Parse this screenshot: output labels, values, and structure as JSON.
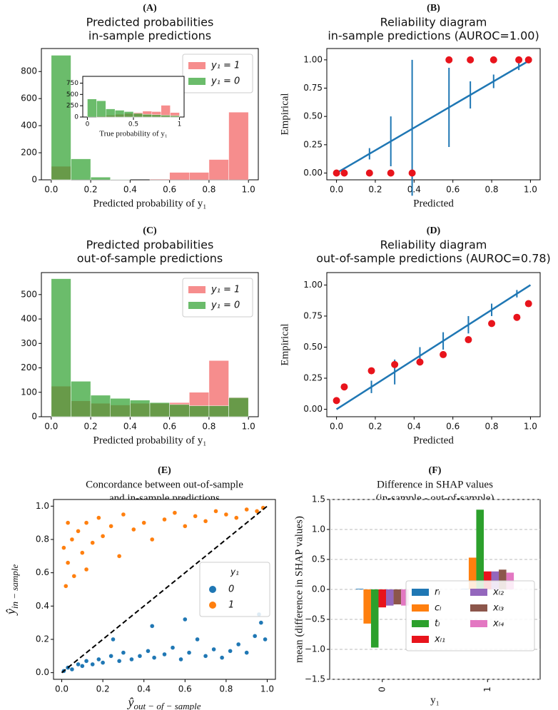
{
  "chart_data": [
    {
      "type": "histogram",
      "label": "(A)",
      "title": [
        "Predicted probabilities",
        "in-sample predictions"
      ],
      "xlabel": "Predicted probability of y₁",
      "xlim": [
        -0.05,
        1.05
      ],
      "ylim": [
        0,
        970
      ],
      "xticks": [
        {
          "value": 0,
          "label": "0.0"
        },
        {
          "value": 0.2,
          "label": "0.2"
        },
        {
          "value": 0.4,
          "label": "0.4"
        },
        {
          "value": 0.6,
          "label": "0.6"
        },
        {
          "value": 0.8,
          "label": "0.8"
        },
        {
          "value": 1,
          "label": "1.0"
        }
      ],
      "yticks": [
        0,
        200,
        400,
        600,
        800
      ],
      "alpha": 0.7,
      "legend": "upper right",
      "bins": [
        0,
        0.1,
        0.2,
        0.3,
        0.4,
        0.5,
        0.6,
        0.7,
        0.8,
        0.9,
        1.0
      ],
      "series": [
        {
          "name": "y₁ = 1",
          "color": "#f25c5c",
          "values": [
            100,
            0,
            0,
            0,
            0,
            5,
            55,
            55,
            150,
            500
          ]
        },
        {
          "name": "y₁ = 0",
          "color": "#2ca02c",
          "values": [
            920,
            155,
            20,
            3,
            0,
            0,
            0,
            0,
            0,
            0
          ]
        }
      ],
      "inset": {
        "type": "histogram",
        "xlabel": "True probability of y₁",
        "xlim": [
          -0.05,
          1.05
        ],
        "ylim": [
          0,
          900
        ],
        "xticks": [
          0,
          0.5,
          1
        ],
        "yticks": [
          0,
          250,
          500,
          750
        ],
        "alpha": 0.7,
        "bins": [
          0,
          0.1,
          0.2,
          0.3,
          0.4,
          0.5,
          0.6,
          0.7,
          0.8,
          0.9,
          1.0
        ],
        "series": [
          {
            "color": "#f25c5c",
            "values": [
              0,
              20,
              40,
              60,
              80,
              100,
              130,
              120,
              260,
              100
            ]
          },
          {
            "color": "#2ca02c",
            "values": [
              400,
              360,
              180,
              150,
              120,
              80,
              60,
              50,
              40,
              30
            ]
          }
        ]
      }
    },
    {
      "type": "reliability",
      "label": "(B)",
      "title": [
        "Reliability diagram",
        "in-sample predictions (AUROC=1.00)"
      ],
      "xlabel": "Predicted",
      "ylabel": "Empirical",
      "xlim": [
        -0.05,
        1.05
      ],
      "ylim": [
        -0.06,
        1.1
      ],
      "xticks": [
        {
          "value": 0,
          "label": "0.0"
        },
        {
          "value": 0.2,
          "label": "0.2"
        },
        {
          "value": 0.4,
          "label": "0.4"
        },
        {
          "value": 0.6,
          "label": "0.6"
        },
        {
          "value": 0.8,
          "label": "0.8"
        },
        {
          "value": 1,
          "label": "1.0"
        }
      ],
      "yticks": [
        {
          "value": 0,
          "label": "0.00"
        },
        {
          "value": 0.25,
          "label": "0.25"
        },
        {
          "value": 0.5,
          "label": "0.50"
        },
        {
          "value": 0.75,
          "label": "0.75"
        },
        {
          "value": 1,
          "label": "1.00"
        }
      ],
      "line": {
        "color": "#1f77b4",
        "x": [
          0,
          1
        ],
        "values": [
          0,
          1
        ]
      },
      "errorbars": {
        "color": "#1f77b4",
        "x": [
          0.17,
          0.28,
          0.39,
          0.58,
          0.69,
          0.81,
          0.94
        ],
        "values": [
          0.17,
          0.28,
          0.4,
          0.58,
          0.69,
          0.81,
          0.94
        ],
        "errors": [
          0.05,
          0.22,
          0.6,
          0.35,
          0.12,
          0.06,
          0.03
        ]
      },
      "points": {
        "color": "#e8141c",
        "x": [
          0,
          0.04,
          0.17,
          0.28,
          0.39,
          0.58,
          0.69,
          0.81,
          0.94,
          0.99
        ],
        "values": [
          0,
          0,
          0,
          0,
          0,
          1,
          1,
          1,
          1,
          1
        ]
      }
    },
    {
      "type": "histogram",
      "label": "(C)",
      "title": [
        "Predicted probabilities",
        "out-of-sample predictions"
      ],
      "xlabel": "Predicted probability of y₁",
      "xlim": [
        -0.05,
        1.05
      ],
      "ylim": [
        0,
        590
      ],
      "xticks": [
        {
          "value": 0,
          "label": "0.0"
        },
        {
          "value": 0.2,
          "label": "0.2"
        },
        {
          "value": 0.4,
          "label": "0.4"
        },
        {
          "value": 0.6,
          "label": "0.6"
        },
        {
          "value": 0.8,
          "label": "0.8"
        },
        {
          "value": 1,
          "label": "1.0"
        }
      ],
      "yticks": [
        0,
        100,
        200,
        300,
        400,
        500
      ],
      "alpha": 0.7,
      "legend": "upper right",
      "bins": [
        0,
        0.1,
        0.2,
        0.3,
        0.4,
        0.5,
        0.6,
        0.7,
        0.8,
        0.9,
        1.0
      ],
      "series": [
        {
          "name": "y₁ = 1",
          "color": "#f25c5c",
          "values": [
            125,
            65,
            55,
            48,
            55,
            55,
            58,
            100,
            230,
            80
          ]
        },
        {
          "name": "y₁ = 0",
          "color": "#2ca02c",
          "values": [
            565,
            145,
            88,
            75,
            68,
            58,
            50,
            45,
            45,
            78
          ]
        }
      ]
    },
    {
      "type": "reliability",
      "label": "(D)",
      "title": [
        "Reliability diagram",
        "out-of-sample predictions (AUROC=0.78)"
      ],
      "xlabel": "Predicted",
      "ylabel": "Empirical",
      "xlim": [
        -0.05,
        1.05
      ],
      "ylim": [
        -0.06,
        1.1
      ],
      "xticks": [
        {
          "value": 0,
          "label": "0.0"
        },
        {
          "value": 0.2,
          "label": "0.2"
        },
        {
          "value": 0.4,
          "label": "0.4"
        },
        {
          "value": 0.6,
          "label": "0.6"
        },
        {
          "value": 0.8,
          "label": "0.8"
        },
        {
          "value": 1,
          "label": "1.0"
        }
      ],
      "yticks": [
        {
          "value": 0,
          "label": "0.00"
        },
        {
          "value": 0.25,
          "label": "0.25"
        },
        {
          "value": 0.5,
          "label": "0.50"
        },
        {
          "value": 0.75,
          "label": "0.75"
        },
        {
          "value": 1,
          "label": "1.00"
        }
      ],
      "line": {
        "color": "#1f77b4",
        "x": [
          0,
          1
        ],
        "values": [
          0,
          1
        ]
      },
      "errorbars": {
        "color": "#1f77b4",
        "x": [
          0.18,
          0.3,
          0.43,
          0.55,
          0.68,
          0.8,
          0.93
        ],
        "values": [
          0.18,
          0.3,
          0.43,
          0.55,
          0.68,
          0.8,
          0.93
        ],
        "errors": [
          0.05,
          0.1,
          0.07,
          0.07,
          0.07,
          0.05,
          0.03
        ]
      },
      "points": {
        "color": "#e8141c",
        "x": [
          0,
          0.04,
          0.18,
          0.3,
          0.43,
          0.55,
          0.68,
          0.8,
          0.93,
          0.99
        ],
        "values": [
          0.07,
          0.18,
          0.31,
          0.36,
          0.38,
          0.44,
          0.56,
          0.69,
          0.74,
          0.85
        ]
      }
    },
    {
      "type": "scatter",
      "label": "(E)",
      "title": [
        "Concordance between out-of-sample",
        "and in-sample predictions"
      ],
      "xlabel": "ŷ",
      "xlabel_subscript": "out − of − sample",
      "ylabel": "ŷ",
      "ylabel_subscript": "in − sample",
      "xlim": [
        -0.04,
        1.04
      ],
      "ylim": [
        -0.04,
        1.04
      ],
      "xticks": [
        {
          "value": 0,
          "label": "0.0"
        },
        {
          "value": 0.2,
          "label": "0.2"
        },
        {
          "value": 0.4,
          "label": "0.4"
        },
        {
          "value": 0.6,
          "label": "0.6"
        },
        {
          "value": 0.8,
          "label": "0.8"
        },
        {
          "value": 1,
          "label": "1.0"
        }
      ],
      "yticks": [
        {
          "value": 0,
          "label": "0.0"
        },
        {
          "value": 0.2,
          "label": "0.2"
        },
        {
          "value": 0.4,
          "label": "0.4"
        },
        {
          "value": 0.6,
          "label": "0.6"
        },
        {
          "value": 0.8,
          "label": "0.8"
        },
        {
          "value": 1,
          "label": "1.0"
        }
      ],
      "legend": "center right",
      "legend_title": "y₁",
      "reference_line": {
        "color": "#000000",
        "x": [
          0,
          1
        ],
        "values": [
          0,
          1
        ]
      },
      "series": [
        {
          "name": "0",
          "color": "#1f77b4",
          "x": [
            0.01,
            0.03,
            0.05,
            0.08,
            0.1,
            0.12,
            0.15,
            0.18,
            0.2,
            0.24,
            0.28,
            0.3,
            0.34,
            0.38,
            0.42,
            0.45,
            0.5,
            0.54,
            0.58,
            0.62,
            0.66,
            0.7,
            0.74,
            0.78,
            0.82,
            0.86,
            0.9,
            0.94,
            0.97,
            0.99,
            0.25,
            0.6,
            0.96,
            0.44
          ],
          "values": [
            0.01,
            0.03,
            0.02,
            0.05,
            0.04,
            0.07,
            0.05,
            0.08,
            0.06,
            0.1,
            0.07,
            0.12,
            0.08,
            0.1,
            0.13,
            0.09,
            0.11,
            0.15,
            0.08,
            0.12,
            0.2,
            0.1,
            0.14,
            0.09,
            0.13,
            0.17,
            0.12,
            0.22,
            0.3,
            0.2,
            0.2,
            0.32,
            0.35,
            0.28
          ]
        },
        {
          "name": "1",
          "color": "#ff7f0e",
          "x": [
            0.01,
            0.02,
            0.03,
            0.05,
            0.06,
            0.08,
            0.1,
            0.12,
            0.15,
            0.18,
            0.2,
            0.24,
            0.28,
            0.3,
            0.35,
            0.4,
            0.44,
            0.5,
            0.55,
            0.6,
            0.65,
            0.7,
            0.75,
            0.8,
            0.85,
            0.9,
            0.95,
            0.98,
            0.03,
            0.12
          ],
          "values": [
            0.75,
            0.52,
            0.66,
            0.8,
            0.58,
            0.85,
            0.72,
            0.9,
            0.78,
            0.93,
            0.82,
            0.88,
            0.7,
            0.95,
            0.86,
            0.9,
            0.8,
            0.92,
            0.96,
            0.88,
            0.94,
            0.91,
            0.97,
            0.95,
            0.93,
            0.98,
            0.97,
            0.99,
            0.9,
            0.62
          ]
        }
      ]
    },
    {
      "type": "bar",
      "label": "(F)",
      "title": [
        "Difference in SHAP values",
        "(in-sample - out-of-sample)"
      ],
      "xlabel": "y₁",
      "ylabel": "mean (difference in SHAP values)",
      "categories": [
        "0",
        "1"
      ],
      "ylim": [
        -1.5,
        1.5
      ],
      "yticks": [
        {
          "value": -1.5,
          "label": "−1.5"
        },
        {
          "value": -1,
          "label": "−1.0"
        },
        {
          "value": -0.5,
          "label": "−0.5"
        },
        {
          "value": 0,
          "label": "0.0"
        },
        {
          "value": 0.5,
          "label": "0.5"
        },
        {
          "value": 1,
          "label": "1.0"
        },
        {
          "value": 1.5,
          "label": "1.5"
        }
      ],
      "grid": true,
      "legend": "lower right",
      "legend_columns": 2,
      "series": [
        {
          "name": "rₗ",
          "color": "#1f77b4",
          "values": [
            0.01,
            0.01
          ]
        },
        {
          "name": "cₗ",
          "color": "#ff7f0e",
          "values": [
            -0.57,
            0.53
          ]
        },
        {
          "name": "tₗ",
          "color": "#2ca02c",
          "values": [
            -0.97,
            1.33
          ]
        },
        {
          "name": "xₗ₁",
          "color": "#e8141c",
          "values": [
            -0.3,
            0.3
          ]
        },
        {
          "name": "xₗ₂",
          "color": "#9467bd",
          "values": [
            -0.27,
            0.3
          ]
        },
        {
          "name": "xₗ₃",
          "color": "#8c564b",
          "values": [
            -0.25,
            0.33
          ]
        },
        {
          "name": "xₗ₄",
          "color": "#e377c2",
          "values": [
            -0.27,
            0.28
          ]
        }
      ]
    }
  ]
}
